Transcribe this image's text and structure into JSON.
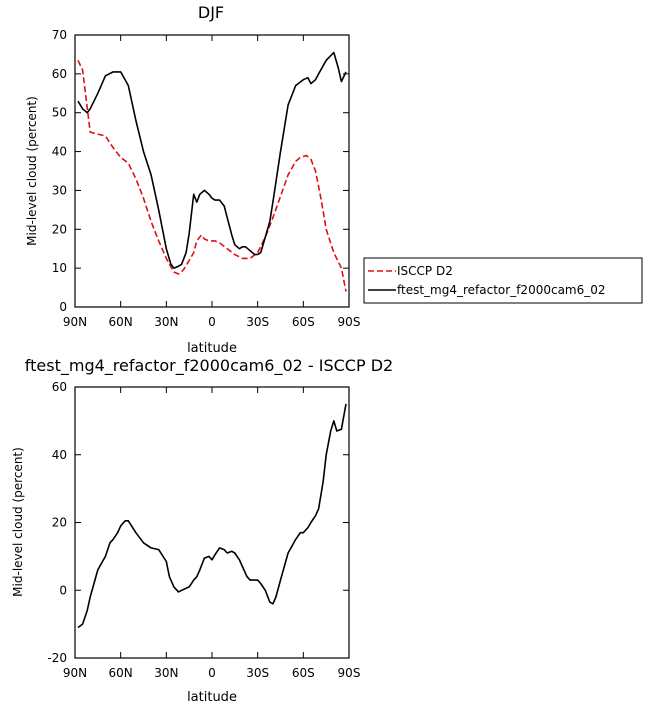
{
  "chart_data": [
    {
      "type": "line",
      "title": "DJF",
      "xlabel": "latitude",
      "ylabel": "Mid-level cloud (percent)",
      "xlim": [
        90,
        -90
      ],
      "ylim": [
        0,
        70
      ],
      "x_ticks": [
        90,
        60,
        30,
        0,
        -30,
        -60,
        -90
      ],
      "x_tick_labels": [
        "90N",
        "60N",
        "30N",
        "0",
        "30S",
        "60S",
        "90S"
      ],
      "y_ticks": [
        0,
        10,
        20,
        30,
        40,
        50,
        60,
        70
      ],
      "y_tick_labels": [
        "0",
        "10",
        "20",
        "30",
        "40",
        "50",
        "60",
        "70"
      ],
      "legend_position": "right",
      "series": [
        {
          "name": "ISCCP D2",
          "color": "#e01010",
          "dash": "dashed",
          "x": [
            88,
            85,
            80,
            75,
            70,
            65,
            60,
            55,
            50,
            45,
            40,
            35,
            30,
            25,
            22,
            20,
            18,
            15,
            12,
            10,
            7,
            5,
            2,
            0,
            -2,
            -5,
            -10,
            -15,
            -20,
            -25,
            -30,
            -35,
            -40,
            -45,
            -50,
            -55,
            -58,
            -62,
            -65,
            -68,
            -70,
            -72,
            -75,
            -80,
            -85,
            -88
          ],
          "y": [
            63.5,
            61,
            45,
            44.5,
            44,
            41,
            38.5,
            37,
            33,
            28,
            22,
            17,
            12.5,
            9,
            8.5,
            9,
            10,
            12,
            14,
            17,
            18.5,
            17.5,
            17,
            17,
            17,
            16.5,
            15,
            13.5,
            12.5,
            12.5,
            14,
            18,
            23,
            28.5,
            34,
            37.5,
            38.5,
            39,
            38,
            35,
            31,
            27,
            20,
            14,
            10,
            4
          ]
        },
        {
          "name": "ftest_mg4_refactor_f2000cam6_02",
          "color": "#000000",
          "dash": "solid",
          "x": [
            88,
            85,
            82,
            80,
            75,
            70,
            65,
            60,
            55,
            50,
            45,
            40,
            35,
            30,
            27,
            25,
            22,
            20,
            17,
            15,
            12,
            10,
            8,
            5,
            2,
            0,
            -2,
            -5,
            -8,
            -10,
            -13,
            -15,
            -18,
            -20,
            -22,
            -25,
            -28,
            -30,
            -32,
            -35,
            -38,
            -40,
            -45,
            -50,
            -55,
            -60,
            -63,
            -65,
            -68,
            -70,
            -75,
            -80,
            -83,
            -85,
            -88
          ],
          "y": [
            53,
            51,
            50,
            51,
            55,
            59.5,
            60.5,
            60.5,
            57,
            48,
            40,
            34,
            25,
            15,
            11,
            10,
            10.5,
            11,
            14,
            19,
            29,
            27,
            29,
            30,
            29,
            28,
            27.5,
            27.5,
            26,
            23,
            18.5,
            16,
            15,
            15.5,
            15.5,
            14.5,
            13.5,
            13.5,
            14,
            18,
            22,
            27,
            40,
            52,
            57,
            58.5,
            59,
            57.5,
            58.5,
            60,
            63.5,
            65.5,
            61.5,
            58,
            60.5
          ]
        }
      ]
    },
    {
      "type": "line",
      "title": "ftest_mg4_refactor_f2000cam6_02 - ISCCP D2",
      "xlabel": "latitude",
      "ylabel": "Mid-level cloud (percent)",
      "xlim": [
        90,
        -90
      ],
      "ylim": [
        -20,
        60
      ],
      "x_ticks": [
        90,
        60,
        30,
        0,
        -30,
        -60,
        -90
      ],
      "x_tick_labels": [
        "90N",
        "60N",
        "30N",
        "0",
        "30S",
        "60S",
        "90S"
      ],
      "y_ticks": [
        -20,
        0,
        20,
        40,
        60
      ],
      "y_tick_labels": [
        "-20",
        "0",
        "20",
        "40",
        "60"
      ],
      "series": [
        {
          "color": "#000000",
          "dash": "solid",
          "x": [
            88,
            85,
            82,
            80,
            75,
            70,
            67,
            65,
            62,
            60,
            57,
            55,
            50,
            45,
            40,
            35,
            30,
            28,
            25,
            22,
            20,
            15,
            12,
            10,
            8,
            5,
            2,
            0,
            -2,
            -5,
            -8,
            -10,
            -13,
            -15,
            -18,
            -20,
            -23,
            -25,
            -28,
            -30,
            -32,
            -35,
            -38,
            -40,
            -42,
            -45,
            -50,
            -55,
            -58,
            -60,
            -63,
            -65,
            -68,
            -70,
            -73,
            -75,
            -78,
            -80,
            -82,
            -85,
            -88
          ],
          "y": [
            -11,
            -10,
            -6,
            -2,
            6,
            10,
            14,
            15,
            17,
            19,
            20.5,
            20.5,
            17,
            14,
            12.5,
            12,
            8.5,
            4,
            1,
            -0.5,
            0,
            1,
            3,
            4,
            6,
            9.5,
            10,
            9,
            10.5,
            12.5,
            12,
            11,
            11.5,
            11,
            9,
            7,
            4,
            3,
            3,
            3,
            2,
            0,
            -3.5,
            -4,
            -2,
            3,
            11,
            15,
            17,
            17,
            18.5,
            20,
            22,
            24,
            32,
            40,
            47,
            50,
            47,
            47.5,
            55
          ]
        }
      ]
    }
  ]
}
